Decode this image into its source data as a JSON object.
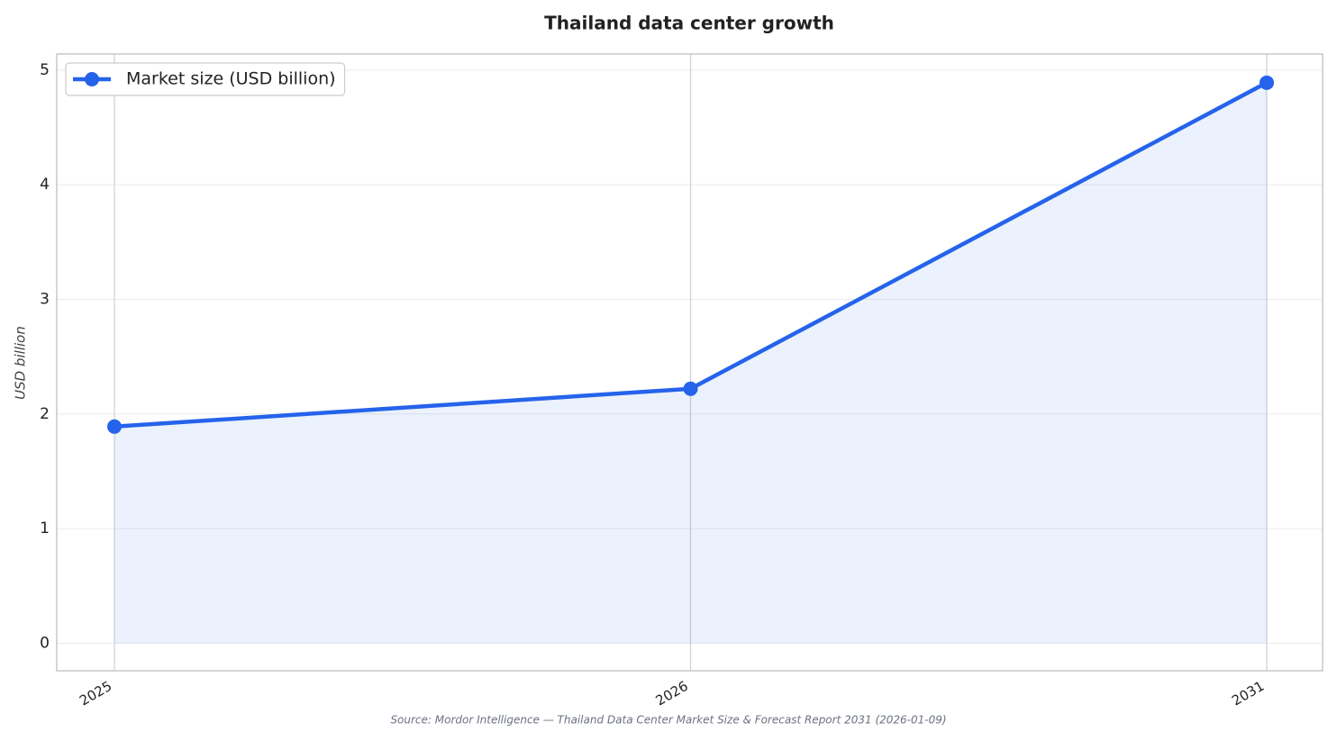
{
  "chart_data": {
    "type": "line",
    "title": "Thailand data center growth",
    "y_label": "USD billion",
    "categories": [
      "2025",
      "2026",
      "2031"
    ],
    "series": [
      {
        "name": "Market size (USD billion)",
        "color": "#2563eb",
        "values": [
          1.89,
          2.22,
          4.89
        ]
      }
    ],
    "area": true,
    "ylim": [
      -0.24,
      5.14
    ],
    "yticks": [
      0,
      1,
      2,
      3,
      4,
      5
    ],
    "grid": true,
    "legend": "upper left",
    "source": "Source: Mordor Intelligence — Thailand Data Center Market Size & Forecast Report 2031 (2026-01-09)"
  }
}
